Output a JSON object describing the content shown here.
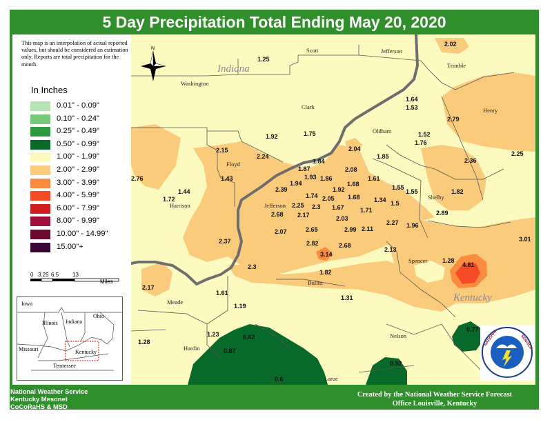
{
  "title": "5 Day Precipitation Total Ending May 20, 2020",
  "note": "This map is an interpolation of actual reported values, but should be considered an estimation only. Reports are total precipitation for the month.",
  "units_label": "In Inches",
  "legend": [
    {
      "label": "0.01\" - 0.09\"",
      "color": "#b7e2b4"
    },
    {
      "label": "0.10\" - 0.24\"",
      "color": "#79c97a"
    },
    {
      "label": "0.25\" - 0.49\"",
      "color": "#2e9a3d"
    },
    {
      "label": "0.50\" - 0.99\"",
      "color": "#07692a"
    },
    {
      "label": "1.00\" - 1.99\"",
      "color": "#fdfabf"
    },
    {
      "label": "2.00\" - 2.99\"",
      "color": "#fbcb7c"
    },
    {
      "label": "3.00\" - 3.99\"",
      "color": "#f98c3f"
    },
    {
      "label": "4.00\" - 5.99\"",
      "color": "#f44a26"
    },
    {
      "label": "6.00\" - 7.99\"",
      "color": "#cf1d21"
    },
    {
      "label": "8.00\" - 9.99\"",
      "color": "#a0103d"
    },
    {
      "label": "10.00\" - 14.99\"",
      "color": "#6a0a2e"
    },
    {
      "label": "15.00\"+",
      "color": "#3a0536"
    }
  ],
  "scale": {
    "ticks": [
      "0",
      "3.25",
      "6.5",
      "13"
    ],
    "unit": "Miles"
  },
  "inset_states": [
    "Iowa",
    "Illinois",
    "Indiana",
    "Ohio",
    "Missouri",
    "Kentucky",
    "Tennessee"
  ],
  "north_label": "N",
  "state_labels": [
    "Indiana",
    "Kentucky"
  ],
  "counties": [
    "Scott",
    "Jefferson",
    "Trimble",
    "Washington",
    "Clark",
    "Henry",
    "Oldham",
    "Floyd",
    "Harrison",
    "Jefferson",
    "Shelby",
    "Spencer",
    "Bullitt",
    "Meade",
    "Nelson",
    "Hardin",
    "Larue"
  ],
  "observations": [
    "2.02",
    "1.25",
    "1.64",
    "1.53",
    "2.79",
    "1.92",
    "1.75",
    "1.52",
    "1.76",
    "2.15",
    "2.24",
    "2.04",
    "1.85",
    "2.25",
    "2.36",
    "1.84",
    "1.87",
    "2.08",
    "2.76",
    "1.43",
    "1.93",
    "1.86",
    "1.94",
    "1.61",
    "1.68",
    "1.92",
    "1.55",
    "1.55",
    "1.82",
    "1.44",
    "1.72",
    "2.39",
    "1.74",
    "1.68",
    "1.34",
    "2.05",
    "1.5",
    "2.25",
    "2.3",
    "1.67",
    "1.71",
    "2.68",
    "2.17",
    "2.89",
    "2.03",
    "2.27",
    "1.96",
    "2.07",
    "2.65",
    "2.99",
    "2.11",
    "3.01",
    "2.37",
    "2.82",
    "2.68",
    "2.13",
    "3.14",
    "1.28",
    "4.81",
    "2.3",
    "1.82",
    "2.17",
    "1.61",
    "1.31",
    "1.19",
    "1.28",
    "1.23",
    "0.62",
    "0.87",
    "0.77",
    "0.92",
    "0.6"
  ],
  "footer_left": [
    "National Weather Service",
    "Kentucky Mesonet",
    "CoCoRaHS & MSD"
  ],
  "footer_right": [
    "Created by the National Weather Service Forecast",
    "Office Louisville, Kentucky"
  ],
  "nws_logo_text": "NATIONAL WEATHER SERVICE",
  "colors": {
    "frame": "#2f8f2a",
    "river": "#6e6e6e",
    "boundary": "#555555"
  }
}
